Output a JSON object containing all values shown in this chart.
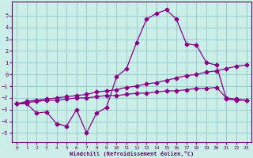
{
  "bg_color": "#cceee8",
  "line_color": "#880088",
  "grid_color": "#99cccc",
  "xlabel": "Windchill (Refroidissement éolien,°C)",
  "xlabel_color": "#660066",
  "tick_color": "#660066",
  "xlim": [
    -0.5,
    23.5
  ],
  "ylim": [
    -5.8,
    6.2
  ],
  "yticks": [
    -5,
    -4,
    -3,
    -2,
    -1,
    0,
    1,
    2,
    3,
    4,
    5
  ],
  "xticks": [
    0,
    1,
    2,
    3,
    4,
    5,
    6,
    7,
    8,
    9,
    10,
    11,
    12,
    13,
    14,
    15,
    16,
    17,
    18,
    19,
    20,
    21,
    22,
    23
  ],
  "line1_x": [
    0,
    1,
    2,
    3,
    4,
    5,
    6,
    7,
    8,
    9,
    10,
    11,
    12,
    13,
    14,
    15,
    16,
    17,
    18,
    19,
    20,
    21,
    22,
    23
  ],
  "line1_y": [
    -2.5,
    -2.5,
    -3.3,
    -3.2,
    -4.2,
    -4.4,
    -3.0,
    -5.0,
    -3.3,
    -2.8,
    -0.2,
    0.5,
    2.7,
    4.7,
    5.2,
    5.5,
    4.7,
    2.6,
    2.5,
    1.0,
    0.8,
    -2.1,
    -2.2,
    -2.2
  ],
  "line2_x": [
    0,
    1,
    2,
    3,
    4,
    5,
    6,
    7,
    8,
    9,
    10,
    11,
    12,
    13,
    14,
    15,
    16,
    17,
    18,
    19,
    20,
    21,
    22,
    23
  ],
  "line2_y": [
    -2.5,
    -2.3,
    -2.2,
    -2.1,
    -2.0,
    -1.9,
    -1.8,
    -1.7,
    -1.5,
    -1.4,
    -1.3,
    -1.1,
    -1.0,
    -0.8,
    -0.7,
    -0.5,
    -0.3,
    -0.1,
    0.0,
    0.2,
    0.3,
    0.5,
    0.7,
    0.8
  ],
  "line3_x": [
    0,
    1,
    2,
    3,
    4,
    5,
    6,
    7,
    8,
    9,
    10,
    11,
    12,
    13,
    14,
    15,
    16,
    17,
    18,
    19,
    20,
    21,
    22,
    23
  ],
  "line3_y": [
    -2.5,
    -2.4,
    -2.3,
    -2.2,
    -2.2,
    -2.1,
    -2.0,
    -2.0,
    -1.9,
    -1.8,
    -1.8,
    -1.7,
    -1.6,
    -1.6,
    -1.5,
    -1.4,
    -1.4,
    -1.3,
    -1.2,
    -1.2,
    -1.1,
    -2.0,
    -2.1,
    -2.2
  ],
  "marker": "D",
  "marker_size": 2.5
}
